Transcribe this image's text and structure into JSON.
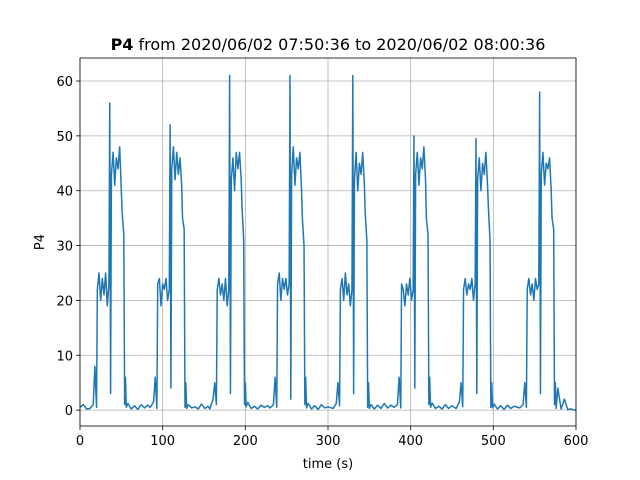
{
  "chart_data": {
    "type": "line",
    "title": {
      "bold": "P4",
      "text": "from 2020/06/02 07:50:36 to 2020/06/02 08:00:36"
    },
    "xlabel": "time (s)",
    "ylabel": "P4",
    "xlim": [
      0,
      600
    ],
    "ylim": [
      -2.9,
      64.2
    ],
    "xticks": [
      0,
      100,
      200,
      300,
      400,
      500,
      600
    ],
    "yticks": [
      0,
      10,
      20,
      30,
      40,
      50,
      60
    ],
    "grid": true,
    "x": [
      0,
      4,
      8,
      12,
      16,
      18,
      20,
      21,
      23,
      25,
      27,
      29,
      31,
      33,
      35,
      36,
      37,
      38,
      40,
      42,
      44,
      46,
      48,
      50,
      51,
      53,
      54,
      55,
      56,
      58,
      62,
      66,
      70,
      74,
      78,
      82,
      85,
      89,
      91,
      93,
      94,
      96,
      98,
      100,
      102,
      104,
      106,
      108,
      109,
      110,
      111,
      113,
      115,
      117,
      119,
      121,
      123,
      124,
      126,
      127,
      128,
      129,
      131,
      135,
      139,
      143,
      147,
      151,
      155,
      157,
      161,
      163,
      165,
      166,
      168,
      170,
      172,
      174,
      176,
      178,
      180,
      181,
      182,
      183,
      185,
      187,
      189,
      191,
      193,
      195,
      196,
      198,
      199,
      200,
      201,
      203,
      207,
      211,
      215,
      219,
      223,
      227,
      230,
      234,
      236,
      238,
      239,
      241,
      243,
      245,
      247,
      249,
      251,
      253,
      254,
      255,
      256,
      258,
      260,
      262,
      264,
      266,
      268,
      269,
      271,
      272,
      273,
      274,
      276,
      280,
      284,
      288,
      292,
      296,
      300,
      306,
      310,
      312,
      314,
      315,
      317,
      319,
      321,
      323,
      325,
      327,
      329,
      330,
      331,
      332,
      334,
      336,
      338,
      340,
      342,
      344,
      345,
      347,
      348,
      349,
      350,
      352,
      356,
      360,
      364,
      368,
      372,
      376,
      380,
      384,
      386,
      388,
      389,
      391,
      393,
      395,
      397,
      399,
      401,
      403,
      404,
      405,
      406,
      408,
      410,
      412,
      414,
      416,
      418,
      419,
      421,
      422,
      423,
      424,
      426,
      430,
      434,
      438,
      442,
      446,
      450,
      455,
      459,
      461,
      463,
      464,
      466,
      468,
      470,
      472,
      474,
      476,
      478,
      479,
      480,
      481,
      483,
      485,
      487,
      489,
      491,
      493,
      494,
      496,
      497,
      498,
      499,
      501,
      505,
      509,
      513,
      517,
      521,
      525,
      532,
      536,
      538,
      540,
      541,
      543,
      545,
      547,
      549,
      551,
      553,
      555,
      556,
      557,
      558,
      560,
      562,
      564,
      566,
      568,
      570,
      571,
      573,
      574,
      575,
      576,
      578,
      582,
      586,
      590,
      594,
      598,
      600
    ],
    "series": [
      {
        "color": "#1f77b4",
        "values": [
          0.5,
          1,
          0.2,
          0.3,
          1,
          8,
          0.5,
          22,
          25,
          20,
          24,
          21,
          25,
          19,
          23,
          56,
          3,
          43,
          47,
          41,
          46,
          44,
          48,
          40,
          36,
          32,
          1,
          6,
          0.5,
          1.2,
          0.2,
          0.8,
          0.1,
          1,
          0.4,
          0.9,
          0.5,
          1.5,
          6,
          0.3,
          23,
          24,
          19,
          23,
          22,
          24,
          20,
          22,
          52,
          4,
          44,
          48,
          42,
          47,
          43,
          46,
          41,
          35,
          33,
          0.5,
          5,
          0.3,
          1,
          0.4,
          0.6,
          0.2,
          1.1,
          0.3,
          0.7,
          0.2,
          2,
          5,
          1,
          22,
          24,
          21,
          23,
          20,
          24,
          19,
          22,
          61,
          3,
          42,
          46,
          40,
          47,
          44,
          47,
          42,
          37,
          31,
          1,
          5,
          0.6,
          1.4,
          0.3,
          0.7,
          0.2,
          0.9,
          0.5,
          0.8,
          0.4,
          1,
          6,
          0.5,
          23,
          25,
          20,
          24,
          22,
          24,
          21,
          23,
          61,
          2,
          43,
          48,
          41,
          46,
          44,
          47,
          40,
          35,
          30,
          1,
          6,
          0.4,
          1.2,
          0.2,
          0.8,
          0.1,
          1,
          0.4,
          0.6,
          0.3,
          1.2,
          5,
          0.8,
          22,
          24,
          20,
          25,
          21,
          23,
          19,
          22,
          61,
          3,
          42,
          47,
          40,
          45,
          43,
          47,
          41,
          36,
          31,
          0.5,
          5,
          0.3,
          1,
          0.2,
          0.9,
          0.3,
          1.2,
          0.4,
          0.9,
          0.5,
          1,
          6,
          0.4,
          23,
          22,
          19,
          23,
          21,
          24,
          20,
          22,
          50,
          4,
          43,
          47,
          41,
          46,
          44,
          48,
          42,
          35,
          32,
          1,
          6,
          0.5,
          1.3,
          0.3,
          0.7,
          0.2,
          1,
          0.3,
          0.8,
          0.3,
          1.5,
          5,
          0.6,
          22,
          24,
          21,
          23,
          22,
          24,
          20,
          23,
          49.5,
          3,
          42,
          46,
          40,
          45,
          43,
          47,
          41,
          37,
          31,
          0.5,
          5,
          0.4,
          1.1,
          0.2,
          0.8,
          0.1,
          0.9,
          0.3,
          0.7,
          0.4,
          1,
          5,
          0.5,
          22,
          24,
          21,
          23,
          20,
          24,
          22,
          23,
          58,
          3,
          43,
          47,
          41,
          45,
          44,
          46,
          40,
          35,
          33,
          1,
          5,
          0.3,
          4,
          0.2,
          2,
          0.1,
          0.2,
          0,
          0
        ]
      }
    ]
  }
}
